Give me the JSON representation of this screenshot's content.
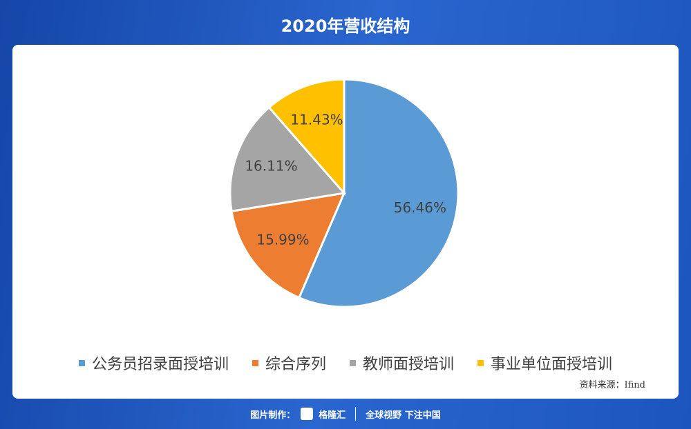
{
  "chart_data": {
    "type": "pie",
    "title": "2020年营收结构",
    "categories": [
      "公务员招录面授培训",
      "综合序列",
      "教师面授培训",
      "事业单位面授培训"
    ],
    "values": [
      56.46,
      15.99,
      16.11,
      11.43
    ],
    "value_labels": [
      "56.46%",
      "15.99%",
      "16.11%",
      "11.43%"
    ],
    "colors": [
      "#5b9bd5",
      "#ed7d31",
      "#a5a5a5",
      "#ffc000"
    ],
    "legend": "bottom",
    "source": "资料来源：Ifind",
    "credit": "图片制作：",
    "brand": "格隆汇",
    "slogan": "全球视野 下注中国"
  }
}
